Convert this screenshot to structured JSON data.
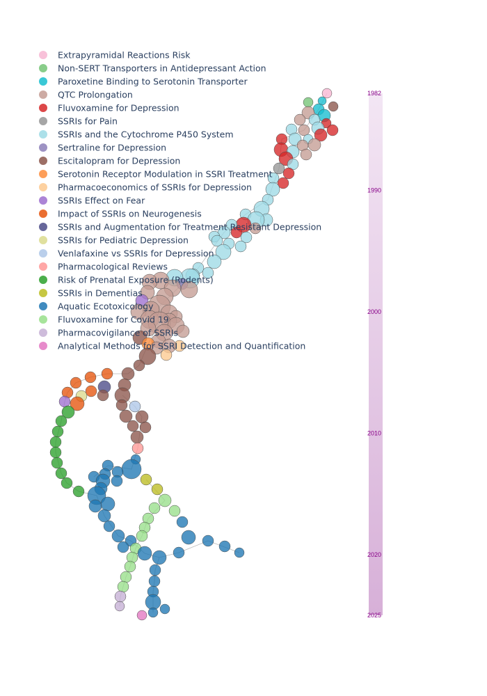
{
  "chart_data": {
    "type": "scatter",
    "title": "",
    "xlabel": "",
    "ylabel": "",
    "legend_position": "top-left",
    "grid": false,
    "colorbar": {
      "ticks": [
        "1982",
        "1990",
        "2000",
        "2010",
        "2020",
        "2025"
      ],
      "range": [
        1982,
        2025
      ],
      "color_low": "#f3e6f4",
      "color_high": "#d7b0d8",
      "tick_color": "#880088"
    },
    "series": [
      {
        "name": "Extrapyramidal Reactions Risk",
        "color": "#f7b6d2"
      },
      {
        "name": "Non-SERT Transporters in Antidepressant Action",
        "color": "#74c476"
      },
      {
        "name": "Paroxetine Binding to Serotonin Transporter",
        "color": "#17becf"
      },
      {
        "name": "QTC Prolongation",
        "color": "#c49c94"
      },
      {
        "name": "Fluvoxamine for Depression",
        "color": "#d62728"
      },
      {
        "name": "SSRIs for Pain",
        "color": "#969696"
      },
      {
        "name": "SSRIs and the Cytochrome P450 System",
        "color": "#9edae5"
      },
      {
        "name": "Sertraline for Depression",
        "color": "#8c7fb8"
      },
      {
        "name": "Escitalopram for Depression",
        "color": "#8c564b"
      },
      {
        "name": "Serotonin Receptor Modulation in SSRI Treatment",
        "color": "#fd8d3c"
      },
      {
        "name": "Pharmacoeconomics of SSRIs for Depression",
        "color": "#fdc98f"
      },
      {
        "name": "SSRIs Effect on Fear",
        "color": "#9e6fcf"
      },
      {
        "name": "Impact of SSRIs on Neurogenesis",
        "color": "#e6550d"
      },
      {
        "name": "SSRIs and Augmentation for Treatment Resistant Depression",
        "color": "#4c4c88"
      },
      {
        "name": "SSRIs for Pediatric Depression",
        "color": "#dbdb8d"
      },
      {
        "name": "Venlafaxine vs SSRIs for Depression",
        "color": "#aec7e8"
      },
      {
        "name": "Pharmacological Reviews",
        "color": "#ff9896"
      },
      {
        "name": "Risk of Prenatal Exposure (Rodents)",
        "color": "#2ca02c"
      },
      {
        "name": "SSRIs in Dementias",
        "color": "#bcbd22"
      },
      {
        "name": "Aquatic Ecotoxicology",
        "color": "#1f77b4"
      },
      {
        "name": "Fluvoxamine for Covid 19",
        "color": "#98df8a"
      },
      {
        "name": "Pharmacovigilance of SSRIs",
        "color": "#c5b0d5"
      },
      {
        "name": "Analytical Methods for SSRI Detection and Quantification",
        "color": "#e377c2"
      }
    ]
  }
}
